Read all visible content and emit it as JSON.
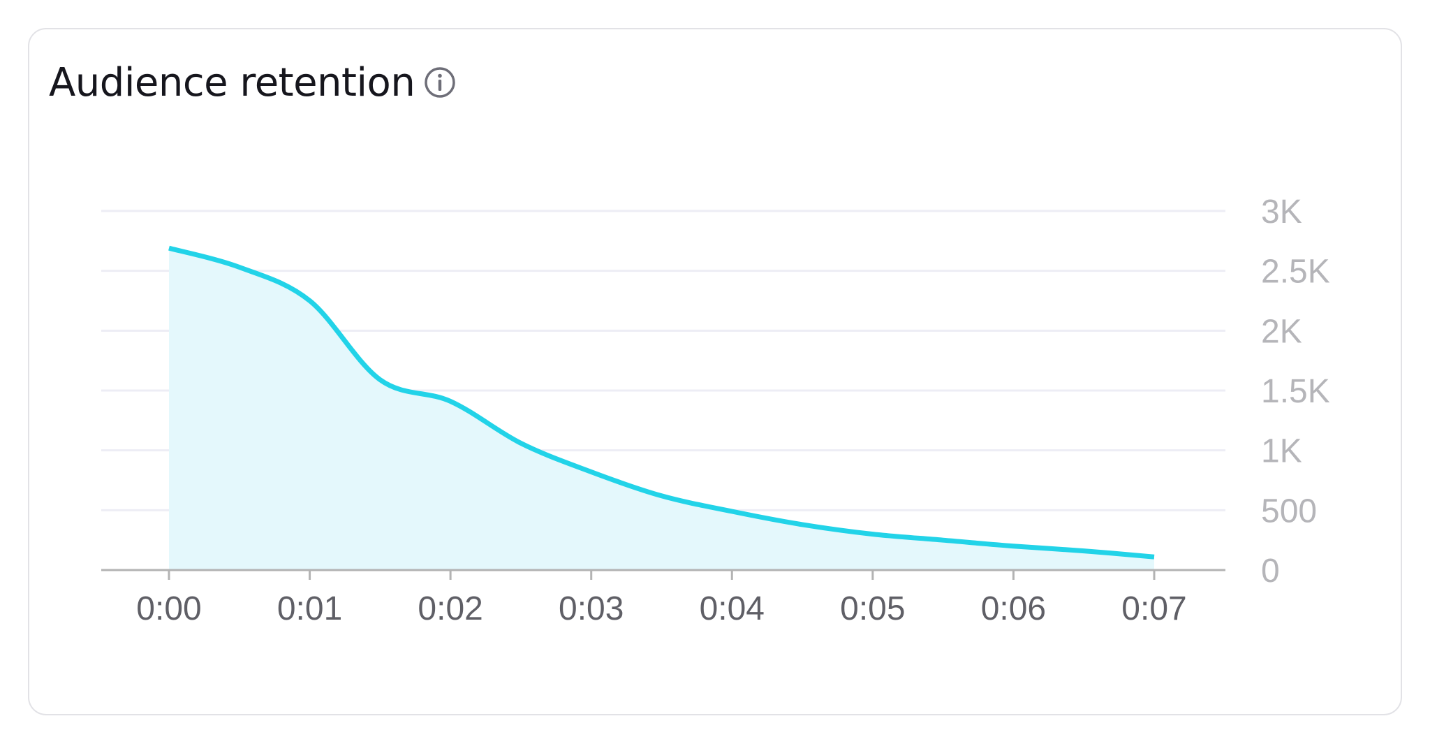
{
  "card": {
    "title": "Audience retention",
    "info_icon": "info-circle-icon"
  },
  "colors": {
    "line": "#22d3e8",
    "area": "#e4f8fc",
    "grid": "#ededf5",
    "axis": "#b3b3b3",
    "x_tick_text": "#5f5f66",
    "y_tick_text": "#b5b5b9"
  },
  "chart_data": {
    "type": "area",
    "title": "Audience retention",
    "xlabel": "",
    "ylabel": "",
    "x_tick_labels": [
      "0:00",
      "0:01",
      "0:02",
      "0:03",
      "0:04",
      "0:05",
      "0:06",
      "0:07"
    ],
    "y_tick_labels": [
      "0",
      "500",
      "1K",
      "1.5K",
      "2K",
      "2.5K",
      "3K"
    ],
    "y_ticks": [
      0,
      500,
      1000,
      1500,
      2000,
      2500,
      3000
    ],
    "ylim": [
      0,
      3000
    ],
    "xlim": [
      0,
      7
    ],
    "y_axis_position": "right",
    "grid": true,
    "legend": "none",
    "series": [
      {
        "x": [
          0,
          0.5,
          1,
          1.5,
          2,
          2.5,
          3,
          3.5,
          4,
          4.5,
          5,
          5.5,
          6,
          6.5,
          7
        ],
        "values": [
          2690,
          2530,
          2250,
          1590,
          1410,
          1060,
          820,
          620,
          490,
          380,
          300,
          250,
          200,
          160,
          110
        ]
      }
    ]
  }
}
